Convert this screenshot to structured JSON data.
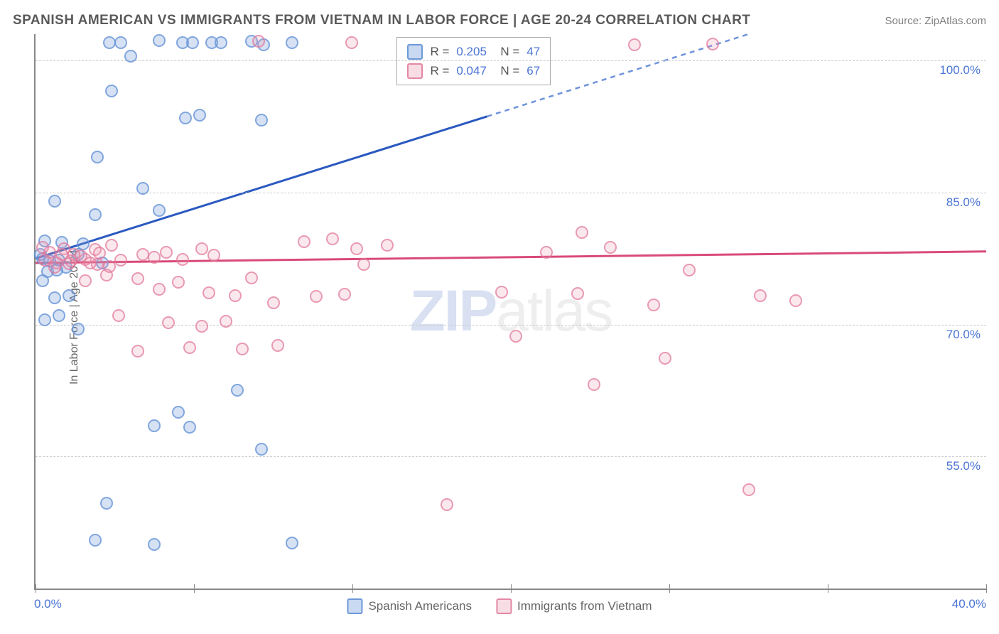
{
  "title": "SPANISH AMERICAN VS IMMIGRANTS FROM VIETNAM IN LABOR FORCE | AGE 20-24 CORRELATION CHART",
  "source": "Source: ZipAtlas.com",
  "watermark_prefix": "ZIP",
  "watermark_suffix": "atlas",
  "yaxis_title": "In Labor Force | Age 20-24",
  "chart": {
    "type": "scatter",
    "xlim": [
      0,
      40
    ],
    "ylim": [
      40,
      103
    ],
    "x_ticks": [
      0,
      6.67,
      13.33,
      20,
      26.67,
      33.33,
      40
    ],
    "x_tick_labels": {
      "0": "0.0%",
      "40": "40.0%"
    },
    "y_gridlines": [
      55,
      70,
      85,
      100
    ],
    "y_tick_labels": [
      "55.0%",
      "70.0%",
      "85.0%",
      "100.0%"
    ],
    "background_color": "#ffffff",
    "grid_color": "#cccccc",
    "axis_color": "#888888",
    "point_radius": 9,
    "series": [
      {
        "name": "Spanish Americans",
        "color_fill": "rgba(120,160,220,0.3)",
        "color_stroke": "rgba(100,145,215,0.75)",
        "R": "0.205",
        "N": "47",
        "trend": {
          "x1": 0,
          "y1": 77.5,
          "x2": 30,
          "y2": 103,
          "solid_end_x": 19,
          "line_color": "#2a59c0",
          "dash_color": "#6f93db"
        },
        "points": [
          [
            3.1,
            102
          ],
          [
            3.6,
            102
          ],
          [
            5.2,
            102.3
          ],
          [
            6.2,
            102
          ],
          [
            6.6,
            102
          ],
          [
            7.4,
            102
          ],
          [
            7.8,
            102
          ],
          [
            9.1,
            102.2
          ],
          [
            9.6,
            101.8
          ],
          [
            10.8,
            102
          ],
          [
            4.0,
            100.5
          ],
          [
            3.2,
            96.5
          ],
          [
            6.3,
            93.5
          ],
          [
            6.9,
            93.8
          ],
          [
            9.5,
            93.2
          ],
          [
            2.6,
            89
          ],
          [
            0.8,
            84
          ],
          [
            2.5,
            82.5
          ],
          [
            4.5,
            85.5
          ],
          [
            5.2,
            83
          ],
          [
            0.4,
            79.5
          ],
          [
            1.1,
            79.3
          ],
          [
            0.3,
            77.5
          ],
          [
            0.6,
            77.2
          ],
          [
            1.0,
            77.3
          ],
          [
            2.0,
            79.2
          ],
          [
            2.8,
            77
          ],
          [
            1.8,
            78
          ],
          [
            0.3,
            75
          ],
          [
            0.8,
            73
          ],
          [
            1.4,
            73.3
          ],
          [
            1.0,
            71
          ],
          [
            0.4,
            70.5
          ],
          [
            1.8,
            69.5
          ],
          [
            6.0,
            60
          ],
          [
            8.5,
            62.5
          ],
          [
            5.0,
            58.5
          ],
          [
            6.5,
            58.3
          ],
          [
            9.5,
            55.8
          ],
          [
            3.0,
            49.7
          ],
          [
            2.5,
            45.5
          ],
          [
            5.0,
            45
          ],
          [
            10.8,
            45.2
          ],
          [
            0.5,
            76
          ],
          [
            0.9,
            76.2
          ],
          [
            1.3,
            76.5
          ],
          [
            0.2,
            78
          ]
        ]
      },
      {
        "name": "Immigrants from Vietnam",
        "color_fill": "rgba(235,150,175,0.22)",
        "color_stroke": "rgba(225,120,155,0.7)",
        "R": "0.047",
        "N": "67",
        "trend": {
          "x1": 0,
          "y1": 77,
          "x2": 40,
          "y2": 78.3,
          "solid_end_x": 40,
          "line_color": "#d94a78",
          "dash_color": "#d94a78"
        },
        "points": [
          [
            9.4,
            102.2
          ],
          [
            13.3,
            102
          ],
          [
            25.2,
            101.8
          ],
          [
            28.5,
            101.9
          ],
          [
            0.6,
            78.2
          ],
          [
            1.2,
            78.6
          ],
          [
            1.6,
            78
          ],
          [
            0.9,
            77
          ],
          [
            1.4,
            76.9
          ],
          [
            2.1,
            77.4
          ],
          [
            2.5,
            78.5
          ],
          [
            2.6,
            76.8
          ],
          [
            3.2,
            79
          ],
          [
            3.6,
            77.3
          ],
          [
            4.5,
            78
          ],
          [
            5.0,
            77.6
          ],
          [
            5.5,
            78.2
          ],
          [
            6.2,
            77.4
          ],
          [
            7.0,
            78.6
          ],
          [
            7.5,
            77.9
          ],
          [
            11.3,
            79.4
          ],
          [
            12.5,
            79.7
          ],
          [
            13.5,
            78.6
          ],
          [
            13.8,
            76.8
          ],
          [
            14.8,
            79
          ],
          [
            21.5,
            78.2
          ],
          [
            24.2,
            78.8
          ],
          [
            27.5,
            76.2
          ],
          [
            2.1,
            75
          ],
          [
            3.0,
            75.6
          ],
          [
            4.3,
            75.2
          ],
          [
            5.2,
            74
          ],
          [
            6.0,
            74.8
          ],
          [
            7.3,
            73.6
          ],
          [
            8.4,
            73.3
          ],
          [
            9.1,
            75.3
          ],
          [
            10.0,
            72.5
          ],
          [
            11.8,
            73.2
          ],
          [
            13.0,
            73.4
          ],
          [
            19.6,
            73.7
          ],
          [
            22.8,
            73.5
          ],
          [
            26.0,
            72.2
          ],
          [
            30.5,
            73.3
          ],
          [
            32.0,
            72.7
          ],
          [
            3.5,
            71
          ],
          [
            5.6,
            70.2
          ],
          [
            7.0,
            69.8
          ],
          [
            8.0,
            70.4
          ],
          [
            20.2,
            68.7
          ],
          [
            26.5,
            66.2
          ],
          [
            4.3,
            67
          ],
          [
            6.5,
            67.4
          ],
          [
            8.7,
            67.2
          ],
          [
            10.2,
            67.6
          ],
          [
            23.0,
            80.5
          ],
          [
            23.5,
            63.2
          ],
          [
            17.3,
            49.5
          ],
          [
            30.0,
            51.2
          ],
          [
            0.3,
            78.8
          ],
          [
            0.4,
            77.3
          ],
          [
            0.8,
            76.5
          ],
          [
            1.1,
            78
          ],
          [
            1.5,
            77.2
          ],
          [
            1.9,
            77.8
          ],
          [
            2.3,
            77
          ],
          [
            2.7,
            78.1
          ],
          [
            3.1,
            76.6
          ]
        ]
      }
    ]
  },
  "bottom_legend": [
    {
      "label": "Spanish Americans",
      "swatch": "sw-blue"
    },
    {
      "label": "Immigrants from Vietnam",
      "swatch": "sw-pink"
    }
  ]
}
